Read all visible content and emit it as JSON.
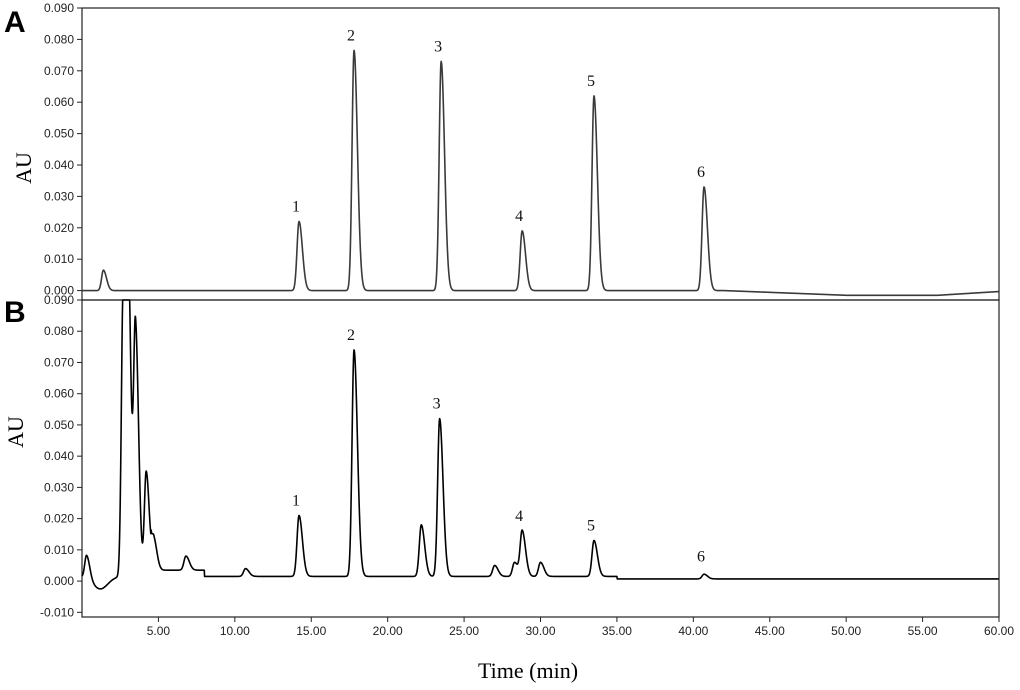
{
  "chart_data": [
    {
      "panel": "A",
      "type": "line",
      "ylabel": "AU",
      "xlabel": "",
      "xlim": [
        0,
        60
      ],
      "ylim": [
        -0.003,
        0.09
      ],
      "y_ticks": [
        0.0,
        0.01,
        0.02,
        0.03,
        0.04,
        0.05,
        0.06,
        0.07,
        0.08,
        0.09
      ],
      "y_tick_labels": [
        "0.000",
        "0.010",
        "0.020",
        "0.030",
        "0.040",
        "0.050",
        "0.060",
        "0.070",
        "0.080",
        "0.090"
      ],
      "baseline": 0.0,
      "peaks": [
        {
          "label": "",
          "rt": 1.4,
          "height": 0.0065
        },
        {
          "label": "1",
          "rt": 14.2,
          "height": 0.022
        },
        {
          "label": "2",
          "rt": 17.8,
          "height": 0.0765
        },
        {
          "label": "3",
          "rt": 23.5,
          "height": 0.073
        },
        {
          "label": "4",
          "rt": 28.8,
          "height": 0.019
        },
        {
          "label": "5",
          "rt": 33.5,
          "height": 0.062
        },
        {
          "label": "6",
          "rt": 40.7,
          "height": 0.033
        }
      ]
    },
    {
      "panel": "B",
      "type": "line",
      "ylabel": "AU",
      "xlabel": "Time (min)",
      "xlim": [
        0,
        60
      ],
      "ylim": [
        -0.0115,
        0.09
      ],
      "y_ticks": [
        -0.01,
        0.0,
        0.01,
        0.02,
        0.03,
        0.04,
        0.05,
        0.06,
        0.07,
        0.08,
        0.09
      ],
      "y_tick_labels": [
        "-0.010",
        "0.000",
        "0.010",
        "0.020",
        "0.030",
        "0.040",
        "0.050",
        "0.060",
        "0.070",
        "0.080",
        "0.090"
      ],
      "x_ticks": [
        5,
        10,
        15,
        20,
        25,
        30,
        35,
        40,
        45,
        50,
        55,
        60
      ],
      "x_tick_labels": [
        "5.00",
        "10.00",
        "15.00",
        "20.00",
        "25.00",
        "30.00",
        "35.00",
        "40.00",
        "45.00",
        "50.00",
        "55.00",
        "60.00"
      ],
      "baseline": 0.0015,
      "peaks": [
        {
          "label": "",
          "rt": 0.3,
          "height": 0.009
        },
        {
          "label": "",
          "rt": 2.7,
          "height": 0.095
        },
        {
          "label": "",
          "rt": 3.0,
          "height": 0.094
        },
        {
          "label": "",
          "rt": 3.5,
          "height": 0.08
        },
        {
          "label": "",
          "rt": 4.2,
          "height": 0.035
        },
        {
          "label": "",
          "rt": 4.7,
          "height": 0.011
        },
        {
          "label": "",
          "rt": 6.8,
          "height": 0.006
        },
        {
          "label": "",
          "rt": 10.7,
          "height": 0.004
        },
        {
          "label": "1",
          "rt": 14.2,
          "height": 0.021
        },
        {
          "label": "2",
          "rt": 17.8,
          "height": 0.074
        },
        {
          "label": "",
          "rt": 22.2,
          "height": 0.018
        },
        {
          "label": "3",
          "rt": 23.4,
          "height": 0.052
        },
        {
          "label": "",
          "rt": 27.0,
          "height": 0.005
        },
        {
          "label": "",
          "rt": 28.3,
          "height": 0.006
        },
        {
          "label": "4",
          "rt": 28.8,
          "height": 0.016
        },
        {
          "label": "",
          "rt": 30.0,
          "height": 0.006
        },
        {
          "label": "5",
          "rt": 33.5,
          "height": 0.013
        },
        {
          "label": "6",
          "rt": 40.7,
          "height": 0.003
        }
      ]
    }
  ],
  "panel_letters": {
    "a": "A",
    "b": "B"
  }
}
